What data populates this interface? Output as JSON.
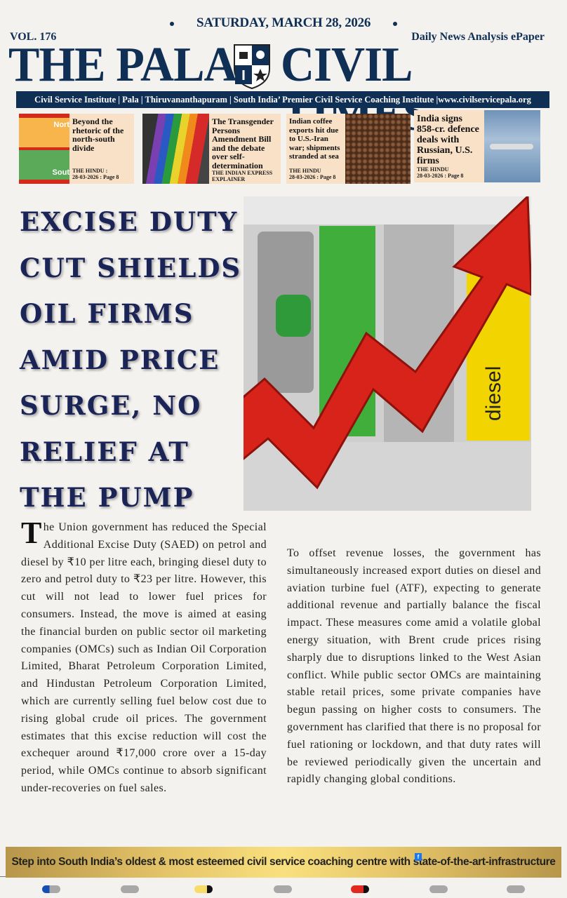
{
  "header": {
    "date": "SATURDAY, MARCH 28, 2026",
    "volume": "VOL. 176",
    "tagline": "Daily News Analysis ePaper",
    "masthead_left": "THE PALA",
    "masthead_right": "CIVIL TIMES",
    "strip": "Civil Service Institute | Pala | Thiruvananthapuram | South India’ Premier Civil Service Coaching Institute |www.civilservicepala.org",
    "brand_color": "#0f2f55"
  },
  "cards": [
    {
      "title": "Beyond the rhetoric of the north-south divide",
      "source": "THE HINDU  :",
      "date_page": "28-03-2026 : Page 8",
      "map_labels": [
        "Nort",
        "Sout"
      ]
    },
    {
      "title": "The Transgender Persons Amendment Bill and the debate over self-determination",
      "source": "THE INDIAN EXPRESS EXPLAINER"
    },
    {
      "title": "Indian coffee exports hit due to U.S.-Iran war; shipments stranded at sea",
      "source": "THE HINDU",
      "date_page": "28-03-2026 : Page 8"
    },
    {
      "title": "India signs 858-cr. defence deals with Russian, U.S. firms",
      "source": "THE HINDU",
      "date_page": "28-03-2026 : Page 8"
    }
  ],
  "article": {
    "headline": "EXCISE DUTY CUT SHIELDS OIL FIRMS AMID PRICE SURGE, NO RELIEF AT THE PUMP",
    "photo_label": "diesel",
    "drop_cap": "T",
    "para1": "he Union government has reduced the Special Additional Excise Duty (SAED) on petrol and diesel by ₹10 per litre each, bringing diesel duty to zero and petrol duty to ₹23 per litre. However, this cut will not lead to lower fuel prices for consumers. Instead, the move is aimed at easing the financial burden on public sector oil marketing companies (OMCs) such as Indian Oil Corporation Limited, Bharat Petroleum Corporation Limited, and Hindustan Petroleum Corporation Limited, which are currently selling fuel below cost due to rising global crude oil prices. The government estimates that this excise reduction will cost the exchequer around ₹17,000 crore over a 15-day period, while OMCs continue to absorb significant under-recoveries on fuel sales.",
    "para2": "To offset revenue losses, the government has simultaneously increased export duties on diesel and aviation turbine fuel (ATF), expecting to generate additional revenue and partially balance the fiscal impact. These measures come amid a volatile global energy situation, with Brent crude prices rising sharply due to disruptions linked to the West Asian conflict. While public sector OMCs are maintaining stable retail prices, some private companies have begun passing on higher costs to consumers. The government has clarified that there is no proposal for fuel rationing or lockdown, and that duty rates will be reviewed periodically given the uncertain and rapidly changing global conditions."
  },
  "footer": {
    "banner": "Step into South India’s oldest & most esteemed civil service coaching centre with state-of-the-art-infrastructure",
    "fb_icon": "f"
  }
}
